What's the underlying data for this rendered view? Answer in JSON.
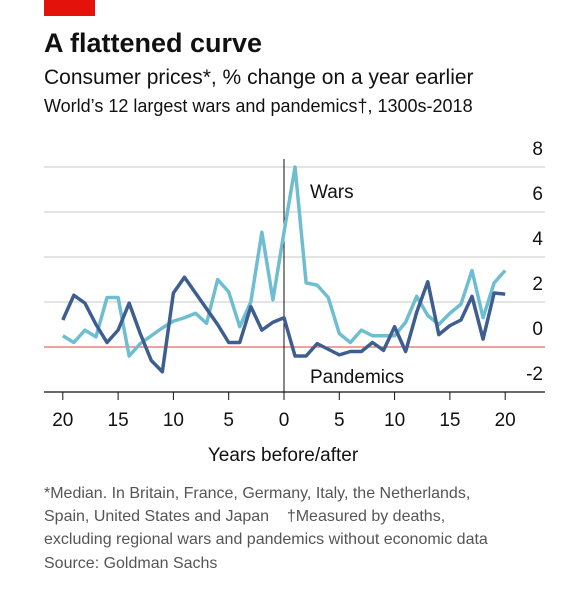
{
  "chart_data": {
    "type": "line",
    "title": "A flattened curve",
    "subtitle": "Consumer prices*, % change on a year earlier",
    "subtitle2": "World’s 12 largest wars and pandemics†, 1300s-2018",
    "x_label": "Years before/after",
    "annotations": [
      "Wars",
      "Pandemics"
    ],
    "footnotes": [
      "*Median. In Britain, France, Germany, Italy, the Netherlands,",
      "Spain, United States and Japan    †Measured by deaths,",
      "excluding regional wars and pandemics without economic data"
    ],
    "source": "Source: Goldman Sachs",
    "x": [
      -20,
      -19,
      -18,
      -17,
      -16,
      -15,
      -14,
      -13,
      -12,
      -11,
      -10,
      -9,
      -8,
      -7,
      -6,
      -5,
      -4,
      -3,
      -2,
      -1,
      0,
      1,
      2,
      3,
      4,
      5,
      6,
      7,
      8,
      9,
      10,
      11,
      12,
      13,
      14,
      15,
      16,
      17,
      18,
      19,
      20
    ],
    "series": [
      {
        "name": "Wars",
        "color": "#6fbdd1",
        "values": [
          0.5,
          0.2,
          0.75,
          0.45,
          2.2,
          2.2,
          -0.4,
          0.15,
          0.5,
          0.85,
          1.15,
          1.3,
          1.5,
          1.05,
          3.0,
          2.45,
          0.9,
          2.0,
          5.1,
          2.1,
          5.1,
          8.0,
          2.85,
          2.75,
          2.2,
          0.6,
          0.2,
          0.75,
          0.5,
          0.5,
          0.5,
          1.1,
          2.25,
          1.4,
          1.0,
          1.5,
          1.9,
          3.4,
          1.3,
          2.85,
          3.4
        ]
      },
      {
        "name": "Pandemics",
        "color": "#3d5e8e",
        "values": [
          1.2,
          2.3,
          1.95,
          1.0,
          0.2,
          0.75,
          1.95,
          0.6,
          -0.6,
          -1.1,
          2.4,
          3.1,
          2.4,
          1.7,
          1.0,
          0.2,
          0.2,
          1.8,
          0.75,
          1.1,
          1.3,
          -0.4,
          -0.4,
          0.15,
          -0.1,
          -0.35,
          -0.2,
          -0.2,
          0.2,
          -0.15,
          0.9,
          -0.2,
          1.55,
          2.9,
          0.55,
          0.95,
          1.2,
          2.25,
          0.35,
          2.4,
          2.35
        ]
      }
    ],
    "xlim": [
      -21.7,
      23.6
    ],
    "xticks": [
      {
        "value": -20,
        "label": "20"
      },
      {
        "value": -15,
        "label": "15"
      },
      {
        "value": -10,
        "label": "10"
      },
      {
        "value": -5,
        "label": "5"
      },
      0,
      5,
      10,
      15,
      20
    ],
    "ylim": [
      -2,
      8
    ],
    "yticks": [
      -2,
      0,
      2,
      4,
      6,
      8
    ],
    "grid": true
  }
}
